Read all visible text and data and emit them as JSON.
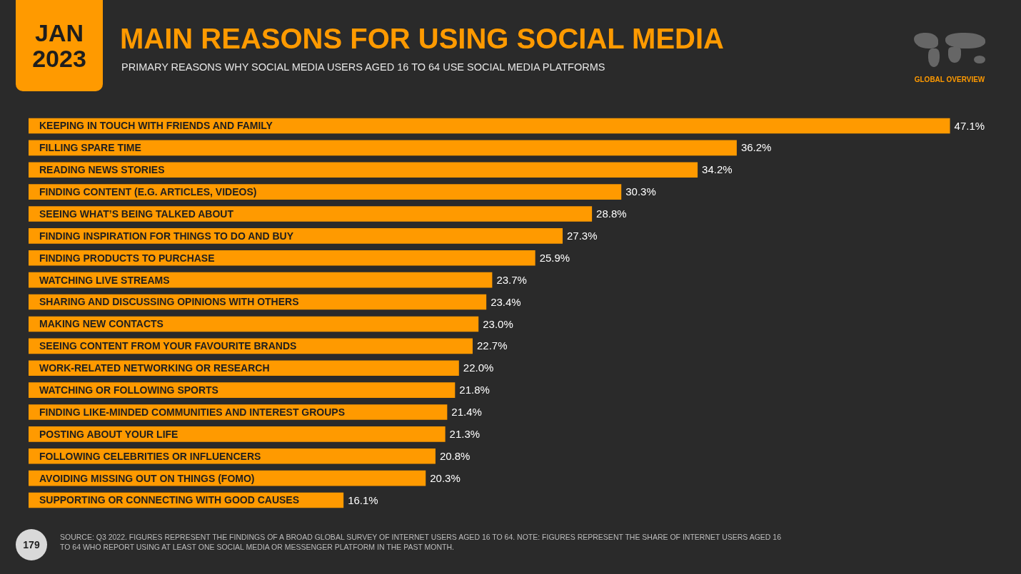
{
  "chart_data": {
    "type": "bar",
    "orientation": "horizontal",
    "title": "MAIN REASONS FOR USING SOCIAL MEDIA",
    "subtitle": "PRIMARY REASONS WHY SOCIAL MEDIA USERS AGED 16 TO 64 USE SOCIAL MEDIA PLATFORMS",
    "categories": [
      "KEEPING IN TOUCH WITH FRIENDS AND FAMILY",
      "FILLING SPARE TIME",
      "READING NEWS STORIES",
      "FINDING CONTENT (E.G. ARTICLES, VIDEOS)",
      "SEEING WHAT’S BEING TALKED ABOUT",
      "FINDING INSPIRATION FOR THINGS TO DO AND BUY",
      "FINDING PRODUCTS TO PURCHASE",
      "WATCHING LIVE STREAMS",
      "SHARING AND DISCUSSING OPINIONS WITH OTHERS",
      "MAKING NEW CONTACTS",
      "SEEING CONTENT FROM YOUR FAVOURITE BRANDS",
      "WORK-RELATED NETWORKING OR RESEARCH",
      "WATCHING OR FOLLOWING SPORTS",
      "FINDING LIKE-MINDED COMMUNITIES AND INTEREST GROUPS",
      "POSTING ABOUT YOUR LIFE",
      "FOLLOWING CELEBRITIES OR INFLUENCERS",
      "AVOIDING MISSING OUT ON THINGS (FOMO)",
      "SUPPORTING OR CONNECTING WITH GOOD CAUSES"
    ],
    "values": [
      47.1,
      36.2,
      34.2,
      30.3,
      28.8,
      27.3,
      25.9,
      23.7,
      23.4,
      23.0,
      22.7,
      22.0,
      21.8,
      21.4,
      21.3,
      20.8,
      20.3,
      16.1
    ],
    "value_labels": [
      "47.1%",
      "36.2%",
      "34.2%",
      "30.3%",
      "28.8%",
      "27.3%",
      "25.9%",
      "23.7%",
      "23.4%",
      "23.0%",
      "22.7%",
      "22.0%",
      "21.8%",
      "21.4%",
      "21.3%",
      "20.8%",
      "20.3%",
      "16.1%"
    ],
    "color": "#ff9a00",
    "annotations": [
      "JAN 2023",
      "GLOBAL OVERVIEW",
      "179",
      "SOURCE: Q3 2022. FIGURES REPRESENT THE FINDINGS OF A BROAD GLOBAL SURVEY OF INTERNET USERS AGED 16 TO 64. NOTE: FIGURES REPRESENT THE SHARE OF INTERNET USERS AGED 16 TO 64 WHO REPORT USING AT LEAST ONE SOCIAL MEDIA OR MESSENGER PLATFORM IN THE PAST MONTH."
    ]
  }
}
